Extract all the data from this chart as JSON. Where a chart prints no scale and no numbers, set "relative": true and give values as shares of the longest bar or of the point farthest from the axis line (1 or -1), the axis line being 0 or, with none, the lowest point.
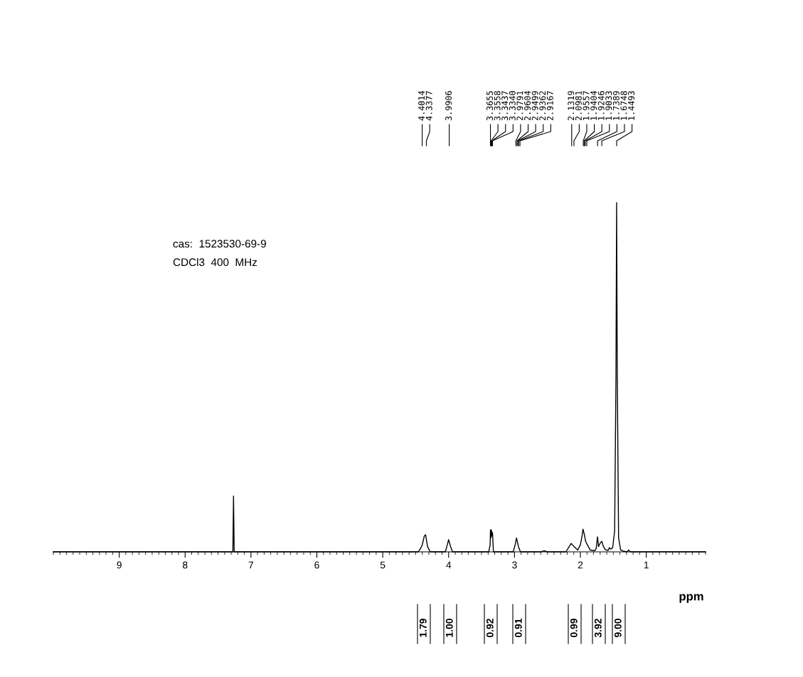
{
  "chart_data": {
    "type": "line",
    "relative": true,
    "xlabel": "ppm",
    "xlim": [
      10.0,
      0.1
    ],
    "xticks": [
      9,
      8,
      7,
      6,
      5,
      4,
      3,
      2,
      1
    ],
    "grid": false,
    "legend": false,
    "marker": "none",
    "line_style": "solid",
    "series": [
      {
        "color": "#000000",
        "x": [
          10.0,
          7.3,
          7.275,
          7.265,
          7.255,
          7.23,
          4.46,
          4.42,
          4.4,
          4.37,
          4.35,
          4.32,
          4.28,
          4.05,
          4.02,
          4.0,
          3.97,
          3.94,
          3.39,
          3.37,
          3.365,
          3.358,
          3.35,
          3.344,
          3.334,
          3.32,
          3.02,
          2.99,
          2.97,
          2.94,
          2.91,
          2.6,
          2.55,
          2.5,
          2.22,
          2.17,
          2.14,
          2.1,
          2.04,
          2.0,
          1.975,
          1.96,
          1.94,
          1.92,
          1.9,
          1.85,
          1.78,
          1.76,
          1.74,
          1.725,
          1.7,
          1.675,
          1.65,
          1.62,
          1.58,
          1.56,
          1.54,
          1.51,
          1.48,
          1.46,
          1.45,
          1.44,
          1.42,
          1.39,
          1.35,
          1.29,
          1.27,
          1.24,
          0.1
        ],
        "values": [
          0.0,
          0.0,
          0.0,
          0.16,
          0.0,
          0.0,
          0.0,
          0.012,
          0.02,
          0.045,
          0.049,
          0.015,
          0.0,
          0.0,
          0.02,
          0.035,
          0.015,
          0.0,
          0.0,
          0.02,
          0.063,
          0.04,
          0.062,
          0.045,
          0.055,
          0.0,
          0.0,
          0.02,
          0.04,
          0.015,
          0.0,
          0.0,
          0.003,
          0.0,
          0.0,
          0.015,
          0.024,
          0.016,
          0.005,
          0.02,
          0.045,
          0.065,
          0.05,
          0.03,
          0.022,
          0.005,
          0.003,
          0.01,
          0.043,
          0.015,
          0.025,
          0.03,
          0.015,
          0.006,
          0.004,
          0.012,
          0.008,
          0.012,
          0.06,
          0.5,
          1.0,
          0.5,
          0.04,
          0.006,
          0.002,
          0.0,
          0.005,
          0.0,
          0.0
        ]
      }
    ],
    "annotations": [
      "cas:  1523530-69-9",
      "CDCl3  400  MHz",
      "4.4014",
      "4.3377",
      "3.9906",
      "3.3655",
      "3.3558",
      "3.3437",
      "3.3340",
      "2.9791",
      "2.9604",
      "2.9499",
      "2.9362",
      "2.9167",
      "2.1319",
      "2.0981",
      "1.9557",
      "1.9404",
      "1.9246",
      "1.9033",
      "1.7389",
      "1.6748",
      "1.4493",
      "1.79",
      "1.00",
      "0.92",
      "0.91",
      "0.99",
      "3.92",
      "9.00"
    ]
  }
}
